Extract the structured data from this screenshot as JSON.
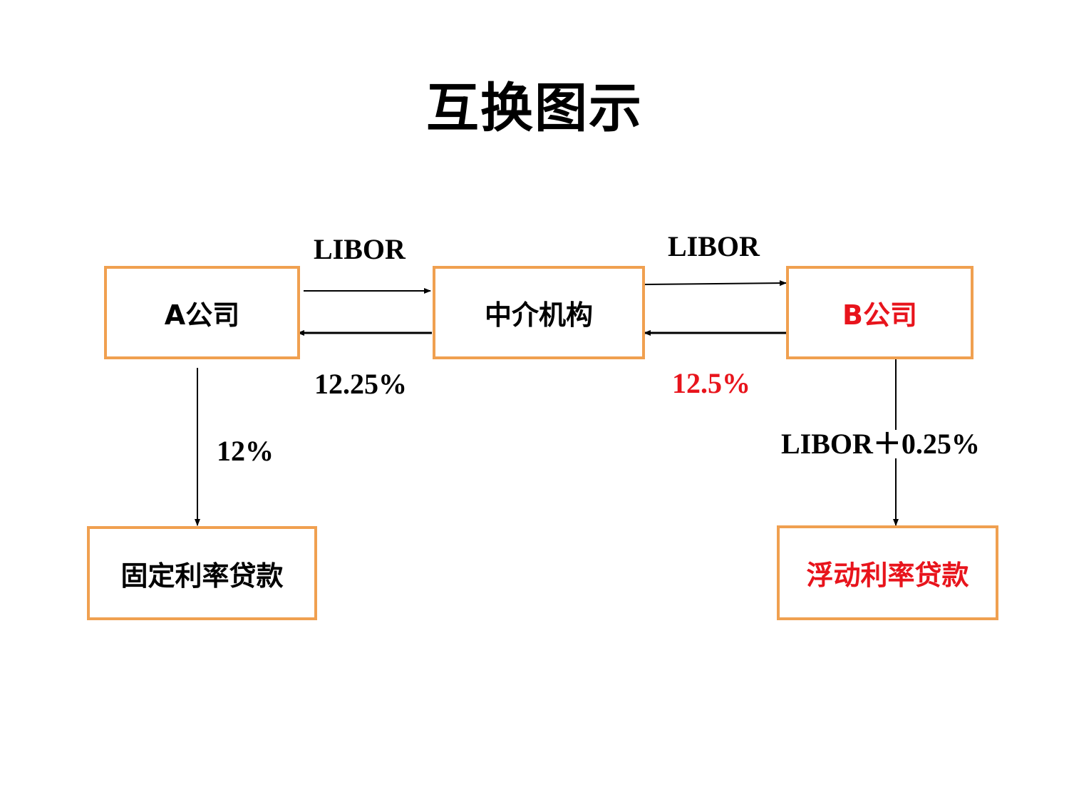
{
  "title": "互换图示",
  "colors": {
    "box_border": "#f0a050",
    "highlight_text": "#e8141c",
    "text": "#000000"
  },
  "boxes": {
    "company_a": "A公司",
    "intermediary": "中介机构",
    "company_b": "B公司",
    "fixed_loan": "固定利率贷款",
    "floating_loan": "浮动利率贷款"
  },
  "flows": {
    "a_to_intermediary": "LIBOR",
    "intermediary_to_b": "LIBOR",
    "intermediary_to_a": "12.25%",
    "b_to_intermediary": "12.5%",
    "a_to_fixed_loan": "12%",
    "b_to_floating_loan": "LIBOR＋0.25%"
  }
}
